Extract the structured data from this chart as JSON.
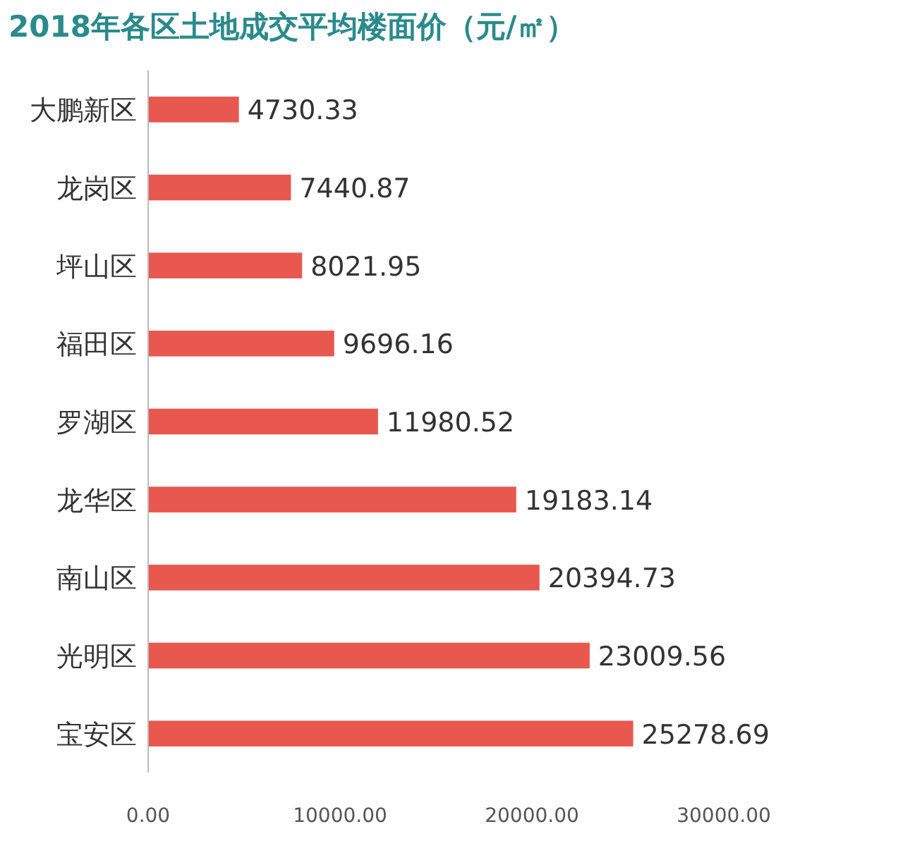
{
  "chart_data": {
    "type": "bar",
    "orientation": "horizontal",
    "title": "2018年各区土地成交平均楼面价（元/㎡）",
    "categories": [
      "大鹏新区",
      "龙岗区",
      "坪山区",
      "福田区",
      "罗湖区",
      "龙华区",
      "南山区",
      "光明区",
      "宝安区"
    ],
    "values": [
      4730.33,
      7440.87,
      8021.95,
      9696.16,
      11980.52,
      19183.14,
      20394.73,
      23009.56,
      25278.69
    ],
    "color": "#e8584f",
    "data_labels": true,
    "xlim": [
      0,
      30000
    ],
    "xticks": [
      {
        "value": 0,
        "label": "0.00"
      },
      {
        "value": 10000,
        "label": "10000.00"
      },
      {
        "value": 20000,
        "label": "20000.00"
      },
      {
        "value": 30000,
        "label": "30000.00"
      }
    ]
  }
}
